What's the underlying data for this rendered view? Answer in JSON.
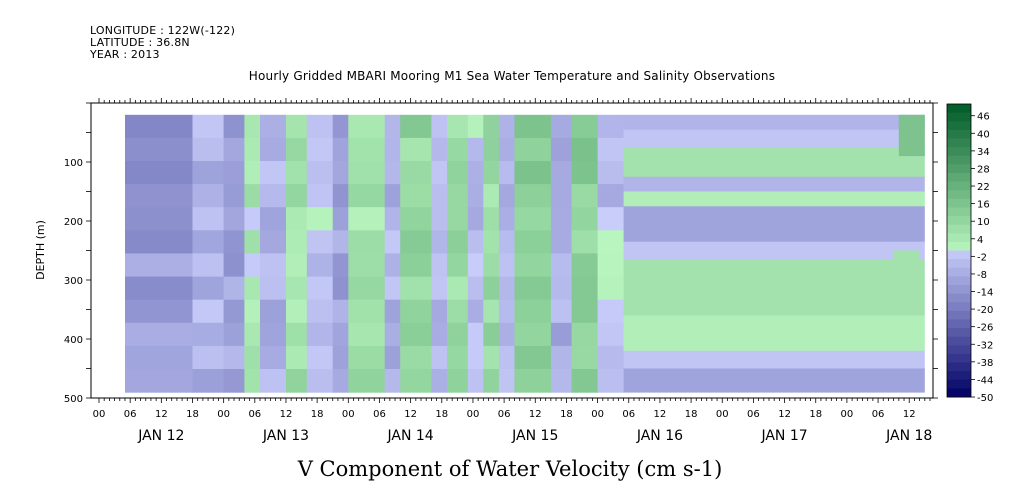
{
  "header": {
    "longitude": "LONGITUDE : 122W(-122)",
    "latitude": "LATITUDE : 36.8N",
    "year": "YEAR : 2013"
  },
  "chart_data": {
    "type": "heatmap",
    "title": "Hourly Gridded MBARI Mooring M1 Sea Water Temperature and Salinity Observations",
    "xlabel": "V Component of Water Velocity (cm s-1)",
    "ylabel": "DEPTH (m)",
    "x_axis": {
      "type": "time",
      "start_hours": 0,
      "end_hours": 160,
      "hour_tick_labels": [
        "00",
        "06",
        "12",
        "18",
        "00",
        "06",
        "12",
        "18",
        "00",
        "06",
        "12",
        "18",
        "00",
        "06",
        "12",
        "18",
        "00",
        "06",
        "12",
        "18",
        "00",
        "06",
        "12",
        "18",
        "00",
        "06",
        "12"
      ],
      "day_labels": [
        {
          "label": "JAN 12",
          "hour": 12
        },
        {
          "label": "JAN 13",
          "hour": 36
        },
        {
          "label": "JAN 14",
          "hour": 60
        },
        {
          "label": "JAN 15",
          "hour": 84
        },
        {
          "label": "JAN 16",
          "hour": 108
        },
        {
          "label": "JAN 17",
          "hour": 132
        },
        {
          "label": "JAN 18",
          "hour": 156
        }
      ]
    },
    "y_axis": {
      "reversed": true,
      "range": [
        0,
        500
      ],
      "tick_labels": [
        "100",
        "200",
        "300",
        "400",
        "500"
      ],
      "tick_values": [
        100,
        200,
        300,
        400,
        500
      ]
    },
    "colorbar": {
      "min": -50,
      "max": 50,
      "labels": [
        "46",
        "40",
        "34",
        "28",
        "22",
        "16",
        "10",
        "4",
        "-2",
        "-8",
        "-14",
        "-20",
        "-26",
        "-32",
        "-38",
        "-44",
        "-50"
      ]
    },
    "data_extent": {
      "x_start_hours": 5,
      "x_end_hours": 159,
      "depth_top": 20,
      "depth_bottom": 490,
      "observed_end_hours": 101
    },
    "observed_bands": [
      {
        "x0": 5,
        "x1": 18,
        "v": -12
      },
      {
        "x0": 18,
        "x1": 24,
        "v": -6
      },
      {
        "x0": 24,
        "x1": 28,
        "v": -10
      },
      {
        "x0": 28,
        "x1": 31,
        "v": 4
      },
      {
        "x0": 31,
        "x1": 36,
        "v": -6
      },
      {
        "x0": 36,
        "x1": 40,
        "v": 6
      },
      {
        "x0": 40,
        "x1": 45,
        "v": -4
      },
      {
        "x0": 45,
        "x1": 48,
        "v": -10
      },
      {
        "x0": 48,
        "x1": 55,
        "v": 6
      },
      {
        "x0": 55,
        "x1": 58,
        "v": -6
      },
      {
        "x0": 58,
        "x1": 64,
        "v": 10
      },
      {
        "x0": 64,
        "x1": 67,
        "v": -6
      },
      {
        "x0": 67,
        "x1": 71,
        "v": 8
      },
      {
        "x0": 71,
        "x1": 74,
        "v": -4
      },
      {
        "x0": 74,
        "x1": 77,
        "v": 8
      },
      {
        "x0": 77,
        "x1": 80,
        "v": -6
      },
      {
        "x0": 80,
        "x1": 87,
        "v": 12
      },
      {
        "x0": 87,
        "x1": 91,
        "v": -8
      },
      {
        "x0": 91,
        "x1": 96,
        "v": 12
      },
      {
        "x0": 96,
        "x1": 101,
        "v": -4
      }
    ],
    "extrapolated_layers": [
      {
        "d0": 20,
        "d1": 45,
        "v": -6
      },
      {
        "d0": 45,
        "d1": 75,
        "v": -2
      },
      {
        "d0": 75,
        "d1": 125,
        "v": 6
      },
      {
        "d0": 125,
        "d1": 150,
        "v": -6
      },
      {
        "d0": 150,
        "d1": 175,
        "v": 2
      },
      {
        "d0": 175,
        "d1": 235,
        "v": -10
      },
      {
        "d0": 235,
        "d1": 265,
        "v": -2
      },
      {
        "d0": 265,
        "d1": 360,
        "v": 6
      },
      {
        "d0": 360,
        "d1": 420,
        "v": 2
      },
      {
        "d0": 420,
        "d1": 450,
        "v": -2
      },
      {
        "d0": 450,
        "d1": 490,
        "v": -10
      }
    ],
    "late_bands": [
      {
        "x0": 154,
        "x1": 159,
        "d0": 20,
        "d1": 90,
        "v": 16
      },
      {
        "x0": 153,
        "x1": 158,
        "d0": 250,
        "d1": 360,
        "v": 6
      }
    ]
  }
}
